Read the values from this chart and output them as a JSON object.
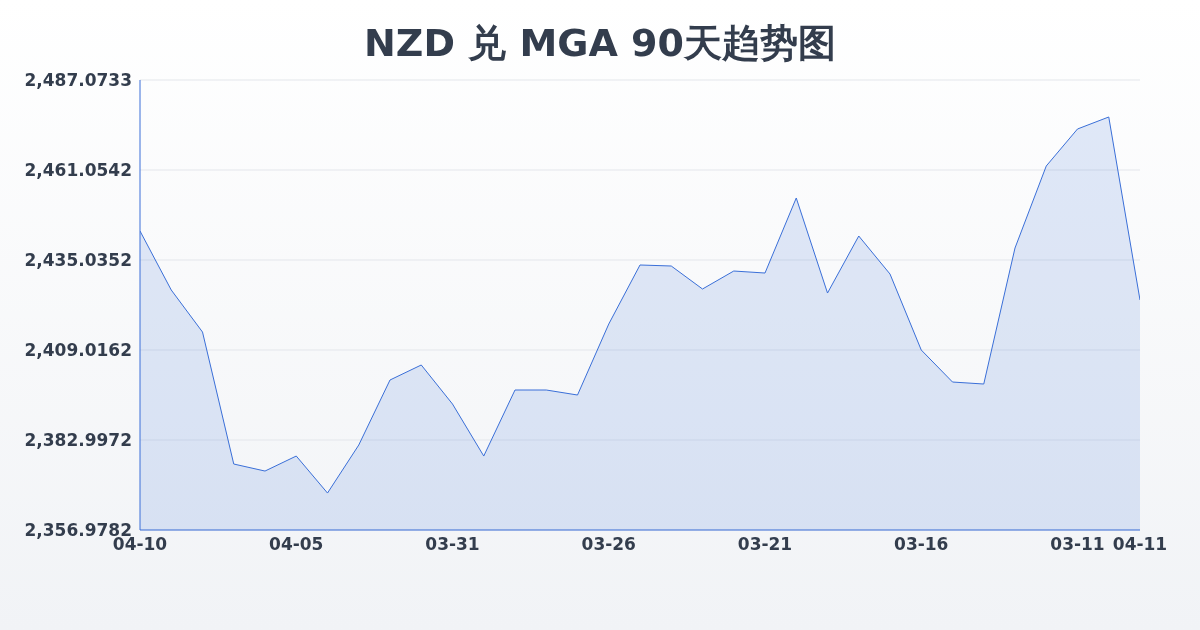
{
  "chart_data": {
    "type": "area",
    "title": "NZD 兑 MGA 90天趋势图",
    "categories": [
      "04-10",
      null,
      null,
      null,
      null,
      "04-05",
      null,
      null,
      null,
      null,
      "03-31",
      null,
      null,
      null,
      null,
      "03-26",
      null,
      null,
      null,
      null,
      "03-21",
      null,
      null,
      null,
      null,
      "03-16",
      null,
      null,
      null,
      null,
      "03-11",
      null,
      "04-11"
    ],
    "series": [
      {
        "color": "#3a6fd8",
        "values": [
          2443.42,
          2426.36,
          2414.21,
          2376.05,
          2374.02,
          2378.36,
          2367.66,
          2381.54,
          2400.34,
          2404.68,
          2393.4,
          2378.36,
          2397.45,
          2397.45,
          2396.0,
          2416.52,
          2433.59,
          2433.3,
          2426.65,
          2431.85,
          2431.27,
          2452.96,
          2425.49,
          2441.97,
          2430.98,
          2409.01,
          2399.76,
          2399.18,
          2438.5,
          2462.21,
          2472.91,
          2476.38,
          2423.47
        ]
      }
    ],
    "ylim": [
      2356.9782,
      2487.0733
    ],
    "yticks": [
      {
        "value": 2356.9782,
        "label": "2,356.9782"
      },
      {
        "value": 2382.9972,
        "label": "2,382.9972"
      },
      {
        "value": 2409.0162,
        "label": "2,409.0162"
      },
      {
        "value": 2435.0352,
        "label": "2,435.0352"
      },
      {
        "value": 2461.0542,
        "label": "2,461.0542"
      },
      {
        "value": 2487.0733,
        "label": "2,487.0733"
      }
    ],
    "grid": "y",
    "legend": false
  }
}
